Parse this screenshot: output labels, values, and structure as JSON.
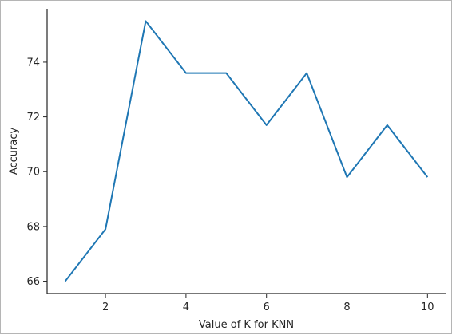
{
  "chart_data": {
    "type": "line",
    "xlabel": "Value of K for KNN",
    "ylabel": "Accuracy",
    "xlim": [
      0.55,
      10.45
    ],
    "ylim": [
      65.55,
      75.95
    ],
    "xticks": [
      2,
      4,
      6,
      8,
      10
    ],
    "yticks": [
      66,
      68,
      70,
      72,
      74
    ],
    "grid": false,
    "line_color": "#1f77b4",
    "axis_color": "#262626",
    "series": [
      {
        "x": [
          1,
          2,
          3,
          4,
          5,
          6,
          7,
          8,
          9,
          10
        ],
        "values": [
          66.0,
          67.9,
          75.5,
          73.6,
          73.6,
          71.7,
          73.6,
          69.8,
          71.7,
          69.8
        ]
      }
    ]
  }
}
